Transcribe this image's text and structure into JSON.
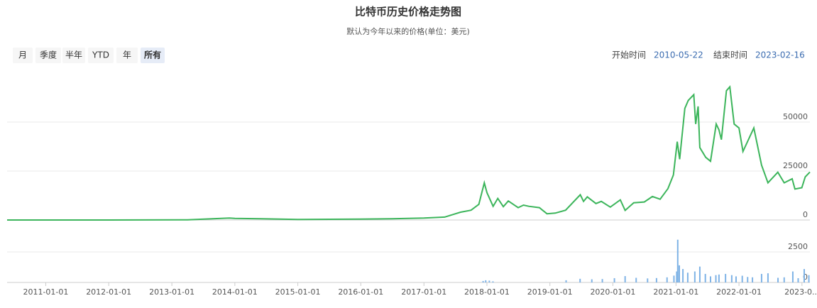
{
  "buttons": [
    "月",
    "季度",
    "半年",
    "YTD",
    "年",
    "所有"
  ],
  "active_button": 5,
  "range": {
    "start_label": "开始时间",
    "start": "2010-05-22",
    "end_label": "结束时间",
    "end": "2023-02-16"
  },
  "chart_data": [
    {
      "type": "line",
      "title": "比特币历史价格走势图",
      "subtitle": "默认为今年以来的价格(单位：美元)",
      "color": "#3cb55b",
      "grid": true,
      "xlim": [
        "2010-05-22",
        "2023-02-16"
      ],
      "ylim": [
        0,
        75000
      ],
      "yticks": [
        0,
        25000,
        50000
      ],
      "x": [
        "2010-05-22",
        "2011-06-01",
        "2012-01-01",
        "2013-04-01",
        "2013-12-01",
        "2014-01-01",
        "2014-06-01",
        "2015-01-01",
        "2016-01-01",
        "2016-07-01",
        "2017-01-01",
        "2017-05-01",
        "2017-08-01",
        "2017-10-01",
        "2017-11-15",
        "2017-12-17",
        "2018-01-01",
        "2018-02-06",
        "2018-03-05",
        "2018-04-06",
        "2018-05-05",
        "2018-07-01",
        "2018-08-01",
        "2018-09-01",
        "2018-11-01",
        "2018-12-15",
        "2019-02-01",
        "2019-04-02",
        "2019-06-26",
        "2019-07-15",
        "2019-08-06",
        "2019-09-25",
        "2019-10-26",
        "2019-12-17",
        "2020-02-13",
        "2020-03-12",
        "2020-05-01",
        "2020-07-01",
        "2020-08-17",
        "2020-10-01",
        "2020-11-15",
        "2020-12-17",
        "2021-01-08",
        "2021-01-22",
        "2021-02-21",
        "2021-03-13",
        "2021-04-14",
        "2021-04-25",
        "2021-05-09",
        "2021-05-19",
        "2021-06-22",
        "2021-07-20",
        "2021-08-22",
        "2021-09-07",
        "2021-09-21",
        "2021-10-20",
        "2021-11-09",
        "2021-12-04",
        "2022-01-01",
        "2022-01-24",
        "2022-03-28",
        "2022-05-12",
        "2022-06-18",
        "2022-08-14",
        "2022-09-20",
        "2022-11-05",
        "2022-11-21",
        "2022-12-31",
        "2023-01-20",
        "2023-02-16"
      ],
      "values": [
        0,
        15,
        5,
        100,
        1000,
        800,
        600,
        300,
        430,
        650,
        1000,
        1500,
        4000,
        5000,
        8000,
        19000,
        14000,
        7000,
        11000,
        6800,
        9700,
        6300,
        7600,
        7000,
        6300,
        3200,
        3500,
        5000,
        12900,
        9500,
        11800,
        8400,
        9500,
        6600,
        10300,
        4900,
        8800,
        9200,
        12000,
        10600,
        16000,
        23000,
        40000,
        31000,
        57000,
        61000,
        64000,
        49000,
        58000,
        37000,
        32000,
        30000,
        49000,
        46000,
        41000,
        66000,
        68000,
        49000,
        47000,
        35000,
        47000,
        28000,
        19000,
        24400,
        19000,
        21000,
        15800,
        16500,
        22000,
        24500
      ]
    },
    {
      "type": "bar",
      "color": "#7fb3e6",
      "grid": true,
      "xlim": [
        "2010-05-22",
        "2023-02-16"
      ],
      "ylim": [
        0,
        3800
      ],
      "yticks": [
        0,
        2500
      ],
      "xticks": [
        "2011-01-01",
        "2012-01-01",
        "2013-01-01",
        "2014-01-01",
        "2015-01-01",
        "2016-01-01",
        "2017-01-01",
        "2018-01-01",
        "2019-01-01",
        "2020-01-01",
        "2021-01-01",
        "2022-01-01",
        {
          "value": "2023-01-01",
          "label": "2023-0..."
        }
      ],
      "x": [
        "2017-12-10",
        "2017-12-25",
        "2018-01-15",
        "2018-02-05",
        "2019-04-05",
        "2019-06-25",
        "2019-09-01",
        "2019-11-01",
        "2020-01-10",
        "2020-03-12",
        "2020-05-15",
        "2020-07-20",
        "2020-09-10",
        "2020-11-10",
        "2020-12-20",
        "2021-01-05",
        "2021-01-11",
        "2021-01-20",
        "2021-02-10",
        "2021-03-10",
        "2021-04-20",
        "2021-05-19",
        "2021-06-20",
        "2021-07-20",
        "2021-08-20",
        "2021-09-07",
        "2021-10-15",
        "2021-11-20",
        "2021-12-15",
        "2022-01-20",
        "2022-02-20",
        "2022-03-20",
        "2022-05-12",
        "2022-06-18",
        "2022-08-15",
        "2022-09-20",
        "2022-11-09",
        "2022-12-10",
        "2023-01-14",
        "2023-02-10"
      ],
      "values": [
        120,
        180,
        150,
        90,
        180,
        300,
        260,
        280,
        350,
        520,
        380,
        330,
        360,
        420,
        560,
        900,
        3500,
        1400,
        1100,
        800,
        900,
        1300,
        700,
        500,
        600,
        650,
        700,
        600,
        500,
        550,
        450,
        420,
        700,
        750,
        380,
        420,
        900,
        350,
        1100,
        600
      ]
    }
  ]
}
